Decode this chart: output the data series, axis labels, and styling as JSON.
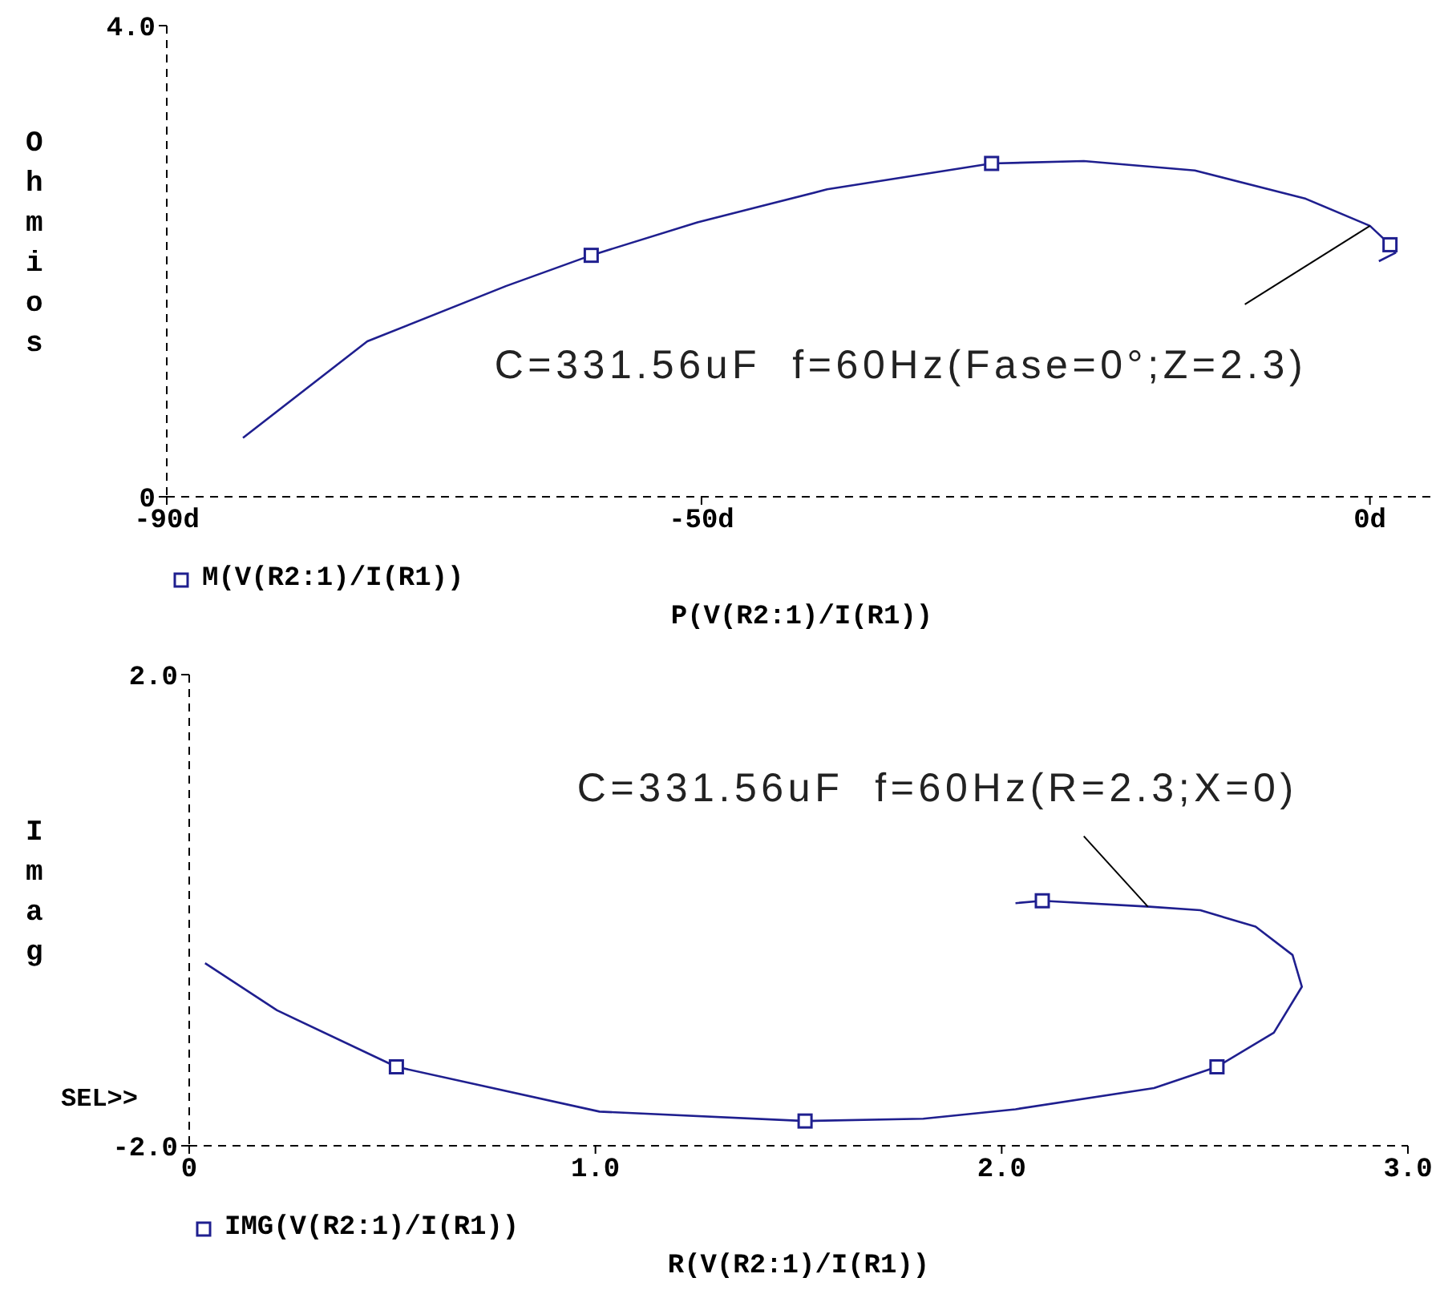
{
  "chart_data": [
    {
      "type": "line",
      "xlabel": "P(V(R2:1)/I(R1))",
      "ylabel": "Ohmios",
      "xlim": [
        -90,
        5
      ],
      "ylim": [
        0,
        4
      ],
      "xticks": [
        {
          "value": -90,
          "label": "-90d"
        },
        {
          "value": -50,
          "label": "-50d"
        },
        {
          "value": 0,
          "label": "0d"
        }
      ],
      "yticks": [
        0,
        {
          "value": 4,
          "label": "4.0"
        }
      ],
      "legend": "bottom left",
      "line_style": "solid",
      "annotations": [
        {
          "text": "C=331.56uF  f=60Hz(Fase=0°;Z=2.3)",
          "x": 0,
          "y": 2.3
        }
      ],
      "series": [
        {
          "name": "M(V(R2:1)/I(R1))",
          "color": "#1f1f8f",
          "x": [
            -84.3,
            -75,
            -64.6,
            -58.25,
            -50.3,
            -40.6,
            -28.3,
            -21.4,
            -13.1,
            -4.8,
            0,
            1.5,
            1.9,
            0.67
          ],
          "values": [
            0.5,
            1.32,
            1.79,
            2.05,
            2.33,
            2.61,
            2.83,
            2.85,
            2.77,
            2.53,
            2.3,
            2.14,
            2.07,
            2.0
          ]
        },
        {
          "type": "scatter",
          "color": "#1f1f8f",
          "marker": "square",
          "x": [
            -58.25,
            -28.3,
            1.5
          ],
          "values": [
            2.05,
            2.83,
            2.14
          ]
        }
      ]
    },
    {
      "type": "line",
      "xlabel": "R(V(R2:1)/I(R1))",
      "ylabel": "Imag",
      "xlim": [
        0,
        3
      ],
      "ylim": [
        -2,
        2
      ],
      "xticks": [
        0,
        {
          "value": 1,
          "label": "1.0"
        },
        {
          "value": 2,
          "label": "2.0"
        },
        {
          "value": 3,
          "label": "3.0"
        }
      ],
      "yticks": [
        {
          "value": -2,
          "label": "-2.0"
        },
        {
          "value": 2,
          "label": "2.0"
        }
      ],
      "legend": "bottom left",
      "line_style": "solid",
      "annotations": [
        {
          "text": "C=331.56uF  f=60Hz(R=2.3;X=0)",
          "x": 2.36,
          "y": 0.03
        },
        "SEL>>"
      ],
      "series": [
        {
          "name": "IMG(V(R2:1)/I(R1))",
          "color": "#1f1f8f",
          "x": [
            0.039,
            0.216,
            0.51,
            1.01,
            1.516,
            1.807,
            2.034,
            2.375,
            2.53,
            2.67,
            2.739,
            2.716,
            2.625,
            2.489,
            2.364,
            2.1,
            2.034
          ],
          "values": [
            -0.45,
            -0.85,
            -1.33,
            -1.71,
            -1.79,
            -1.77,
            -1.69,
            -1.51,
            -1.33,
            -1.04,
            -0.65,
            -0.38,
            -0.14,
            0.0,
            0.03,
            0.08,
            0.06
          ]
        },
        {
          "type": "scatter",
          "color": "#1f1f8f",
          "marker": "square",
          "x": [
            0.51,
            1.516,
            2.53,
            2.1
          ],
          "values": [
            -1.33,
            -1.79,
            -1.33,
            0.08
          ]
        }
      ]
    }
  ]
}
